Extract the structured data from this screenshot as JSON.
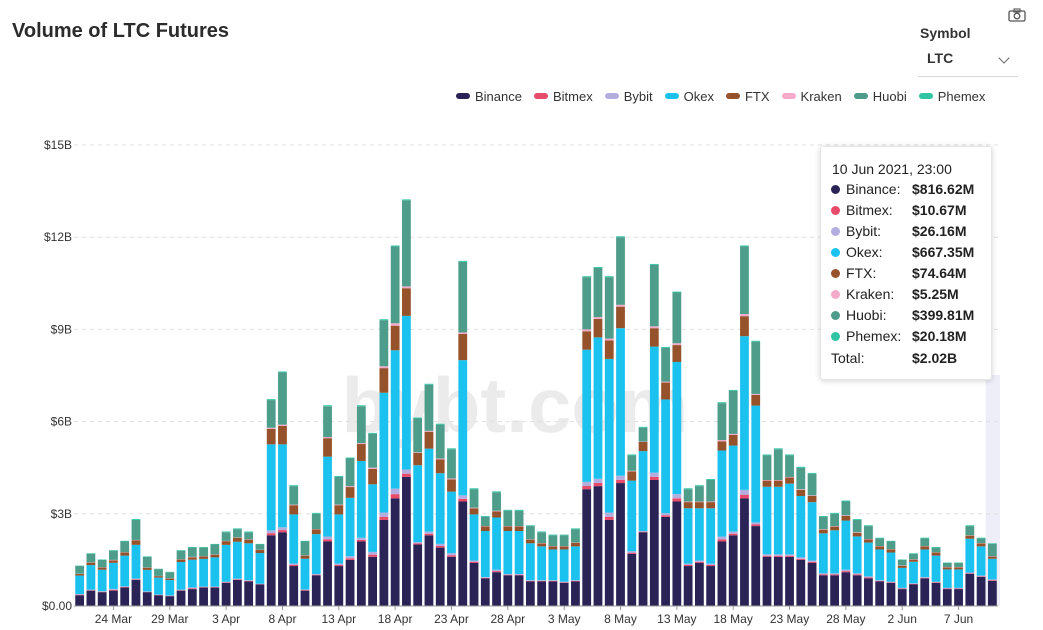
{
  "header": {
    "title": "Volume of LTC Futures"
  },
  "symbol": {
    "label": "Symbol",
    "value": "LTC"
  },
  "toolbar": {
    "camera_icon": "camera-icon"
  },
  "watermark": "bybt.com",
  "legend": [
    {
      "name": "Binance",
      "color": "#2a2456"
    },
    {
      "name": "Bitmex",
      "color": "#e84a6a"
    },
    {
      "name": "Bybit",
      "color": "#b3aee0"
    },
    {
      "name": "Okex",
      "color": "#1cc2ef"
    },
    {
      "name": "FTX",
      "color": "#96522a"
    },
    {
      "name": "Kraken",
      "color": "#f4aac9"
    },
    {
      "name": "Huobi",
      "color": "#4e9c8a"
    },
    {
      "name": "Phemex",
      "color": "#2ec4a4"
    }
  ],
  "tooltip": {
    "date": "10 Jun 2021, 23:00",
    "rows": [
      {
        "name": "Binance:",
        "value": "$816.62M",
        "color": "#2a2456"
      },
      {
        "name": "Bitmex:",
        "value": "$10.67M",
        "color": "#e84a6a"
      },
      {
        "name": "Bybit:",
        "value": "$26.16M",
        "color": "#b3aee0"
      },
      {
        "name": "Okex:",
        "value": "$667.35M",
        "color": "#1cc2ef"
      },
      {
        "name": "FTX:",
        "value": "$74.64M",
        "color": "#96522a"
      },
      {
        "name": "Kraken:",
        "value": "$5.25M",
        "color": "#f4aac9"
      },
      {
        "name": "Huobi:",
        "value": "$399.81M",
        "color": "#4e9c8a"
      },
      {
        "name": "Phemex:",
        "value": "$20.18M",
        "color": "#2ec4a4"
      }
    ],
    "total_label": "Total:",
    "total_value": "$2.02B"
  },
  "chart_data": {
    "type": "bar",
    "stacked": true,
    "title": "Volume of LTC Futures",
    "y_unit": "USD (billions)",
    "ylim": [
      0,
      15
    ],
    "yticks": [
      "$0.00",
      "$3B",
      "$6B",
      "$9B",
      "$12B",
      "$15B"
    ],
    "ytick_values": [
      0,
      3,
      6,
      9,
      12,
      15
    ],
    "xtick_labels": [
      "24 Mar",
      "29 Mar",
      "3 Apr",
      "8 Apr",
      "13 Apr",
      "18 Apr",
      "23 Apr",
      "28 Apr",
      "3 May",
      "8 May",
      "13 May",
      "18 May",
      "23 May",
      "28 May",
      "2 Jun",
      "7 Jun"
    ],
    "xtick_day_index": [
      3,
      8,
      13,
      18,
      23,
      28,
      33,
      38,
      43,
      48,
      53,
      58,
      63,
      68,
      73,
      78
    ],
    "first_date": "21 Mar 2021",
    "grid": "horizontal dashed",
    "highlighted_index": 81,
    "totals": [
      1.3,
      1.7,
      1.5,
      1.8,
      2.1,
      2.8,
      1.6,
      1.2,
      1.1,
      1.8,
      1.9,
      1.9,
      2.0,
      2.4,
      2.5,
      2.4,
      2.0,
      6.7,
      7.6,
      3.9,
      2.1,
      3.0,
      6.5,
      4.2,
      4.8,
      6.5,
      5.6,
      9.3,
      11.7,
      13.2,
      6.1,
      7.2,
      5.9,
      5.1,
      11.2,
      3.8,
      2.9,
      3.7,
      3.1,
      3.1,
      2.6,
      2.4,
      2.3,
      2.3,
      2.5,
      10.7,
      11.0,
      10.7,
      12.0,
      4.9,
      5.8,
      11.1,
      8.4,
      10.2,
      3.8,
      3.9,
      4.1,
      6.6,
      7.0,
      11.7,
      8.6,
      4.9,
      5.1,
      4.9,
      4.5,
      4.3,
      2.9,
      3.0,
      3.4,
      2.8,
      2.6,
      2.2,
      2.1,
      1.5,
      1.7,
      2.2,
      1.9,
      1.4,
      1.4,
      2.6,
      2.2,
      2.02
    ],
    "binance_values": [
      0.35,
      0.5,
      0.45,
      0.5,
      0.6,
      0.85,
      0.45,
      0.35,
      0.32,
      0.5,
      0.55,
      0.6,
      0.6,
      0.75,
      0.85,
      0.8,
      0.7,
      2.3,
      2.4,
      1.3,
      0.5,
      1.0,
      2.1,
      1.3,
      1.5,
      2.1,
      1.6,
      2.8,
      3.5,
      4.2,
      2.0,
      2.3,
      1.9,
      1.6,
      3.4,
      1.4,
      0.9,
      1.1,
      1.0,
      1.0,
      0.8,
      0.8,
      0.8,
      0.75,
      0.8,
      3.8,
      3.9,
      2.8,
      4.0,
      1.7,
      2.4,
      4.1,
      2.9,
      3.4,
      1.3,
      1.4,
      1.3,
      2.1,
      2.3,
      3.5,
      2.6,
      1.6,
      1.6,
      1.6,
      1.5,
      1.4,
      1.0,
      1.0,
      1.1,
      1.0,
      0.9,
      0.8,
      0.75,
      0.55,
      0.7,
      0.9,
      0.75,
      0.55,
      0.55,
      1.05,
      0.95,
      0.82
    ],
    "okex_values": [
      0.6,
      0.8,
      0.7,
      0.85,
      1.0,
      1.1,
      0.7,
      0.55,
      0.5,
      0.9,
      0.9,
      0.9,
      0.95,
      1.2,
      1.2,
      1.2,
      1.0,
      2.8,
      2.7,
      1.6,
      1.0,
      1.3,
      2.6,
      1.6,
      1.9,
      2.5,
      2.2,
      3.9,
      4.5,
      5.0,
      2.5,
      2.7,
      2.3,
      2.0,
      4.4,
      1.5,
      1.5,
      1.7,
      1.4,
      1.4,
      1.2,
      1.1,
      1.0,
      1.05,
      1.1,
      4.3,
      4.6,
      5.0,
      4.8,
      2.3,
      2.6,
      4.1,
      3.7,
      4.3,
      1.8,
      1.7,
      1.8,
      2.8,
      2.8,
      5.0,
      3.8,
      2.2,
      2.2,
      2.3,
      2.0,
      1.9,
      1.3,
      1.4,
      1.6,
      1.2,
      1.1,
      1.0,
      0.95,
      0.65,
      0.7,
      0.9,
      0.85,
      0.6,
      0.6,
      1.1,
      0.95,
      0.67
    ],
    "ftx_values": [
      0.05,
      0.08,
      0.07,
      0.08,
      0.1,
      0.15,
      0.07,
      0.05,
      0.05,
      0.08,
      0.08,
      0.08,
      0.09,
      0.12,
      0.13,
      0.12,
      0.1,
      0.5,
      0.6,
      0.3,
      0.1,
      0.15,
      0.6,
      0.3,
      0.35,
      0.55,
      0.5,
      0.8,
      0.8,
      0.9,
      0.4,
      0.55,
      0.45,
      0.4,
      0.85,
      0.2,
      0.15,
      0.2,
      0.15,
      0.15,
      0.12,
      0.1,
      0.1,
      0.1,
      0.12,
      0.6,
      0.6,
      0.6,
      0.7,
      0.3,
      0.3,
      0.6,
      0.55,
      0.55,
      0.2,
      0.2,
      0.2,
      0.3,
      0.35,
      0.65,
      0.35,
      0.2,
      0.2,
      0.2,
      0.2,
      0.2,
      0.12,
      0.12,
      0.15,
      0.12,
      0.1,
      0.1,
      0.1,
      0.07,
      0.07,
      0.1,
      0.1,
      0.07,
      0.07,
      0.1,
      0.1,
      0.07
    ],
    "huobi_values": [
      0.25,
      0.28,
      0.24,
      0.3,
      0.35,
      0.65,
      0.35,
      0.22,
      0.2,
      0.28,
      0.3,
      0.28,
      0.32,
      0.28,
      0.27,
      0.23,
      0.17,
      0.9,
      1.7,
      0.6,
      0.45,
      0.5,
      1.0,
      0.9,
      0.9,
      1.2,
      1.1,
      1.5,
      2.5,
      2.8,
      1.1,
      1.5,
      1.1,
      0.95,
      2.3,
      0.6,
      0.3,
      0.6,
      0.5,
      0.5,
      0.43,
      0.35,
      0.35,
      0.35,
      0.43,
      1.7,
      1.6,
      2.0,
      2.2,
      0.5,
      0.45,
      2.0,
      1.1,
      1.65,
      0.4,
      0.5,
      0.7,
      1.2,
      1.4,
      2.2,
      1.7,
      0.8,
      1.0,
      0.7,
      0.7,
      0.7,
      0.4,
      0.4,
      0.45,
      0.4,
      0.42,
      0.25,
      0.25,
      0.18,
      0.18,
      0.25,
      0.15,
      0.13,
      0.13,
      0.3,
      0.15,
      0.4
    ]
  }
}
